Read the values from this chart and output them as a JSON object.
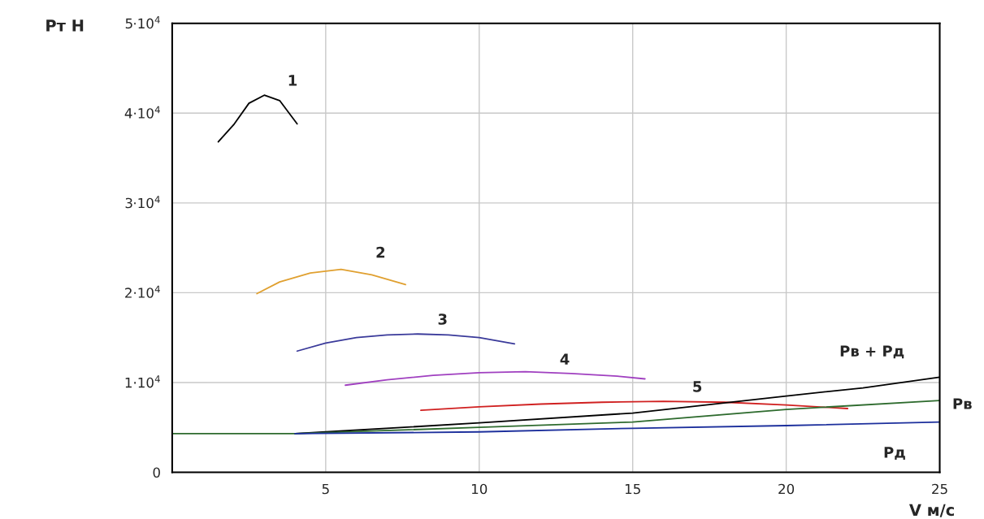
{
  "chart_data": {
    "type": "line",
    "xlabel": "V м/с",
    "ylabel": "Рт Н",
    "xlim": [
      0,
      25
    ],
    "xticks": [
      5,
      10,
      15,
      20,
      25
    ],
    "ylim": [
      0,
      50000
    ],
    "yticks": [
      0,
      {
        "value": 10000,
        "label": "1·10$^{4}$"
      },
      {
        "value": 20000,
        "label": "2·10$^{4}$"
      },
      {
        "value": 30000,
        "label": "3·10$^{4}$"
      },
      {
        "value": 40000,
        "label": "4·10$^{4}$"
      },
      {
        "value": 50000,
        "label": "5·10$^{4}$"
      }
    ],
    "grid": true,
    "legend": false,
    "series": [
      {
        "name": "1",
        "color": "#000000",
        "x": [
          1.5,
          2.0,
          2.5,
          3.0,
          3.5,
          4.07
        ],
        "values": [
          36800,
          38700,
          41100,
          42000,
          41400,
          38800
        ]
      },
      {
        "name": "2",
        "color": "#e0a030",
        "x": [
          2.76,
          3.5,
          4.5,
          5.5,
          6.5,
          7.6
        ],
        "values": [
          19900,
          21200,
          22200,
          22600,
          22000,
          20900
        ]
      },
      {
        "name": "3",
        "color": "#3a3a9a",
        "x": [
          4.07,
          5.0,
          6.0,
          7.0,
          8.0,
          9.0,
          10.0,
          11.15
        ],
        "values": [
          13500,
          14400,
          15000,
          15300,
          15400,
          15300,
          15000,
          14300
        ]
      },
      {
        "name": "4",
        "color": "#a040c0",
        "x": [
          5.64,
          7.0,
          8.5,
          10.0,
          11.5,
          13.0,
          14.5,
          15.4
        ],
        "values": [
          9700,
          10300,
          10800,
          11100,
          11200,
          11000,
          10700,
          10400
        ]
      },
      {
        "name": "5",
        "color": "#d02020",
        "x": [
          8.1,
          10,
          12,
          14,
          16,
          18,
          20,
          22
        ],
        "values": [
          6900,
          7300,
          7600,
          7800,
          7900,
          7800,
          7500,
          7100
        ]
      },
      {
        "name": "Рв + Рд",
        "color": "#000000",
        "x": [
          4,
          5,
          10,
          15,
          20,
          22.5,
          25
        ],
        "values": [
          4300,
          4500,
          5500,
          6600,
          8500,
          9400,
          10600
        ]
      },
      {
        "name": "Рв",
        "color": "#2e6b2e",
        "x": [
          0,
          4,
          10,
          15,
          20,
          25
        ],
        "values": [
          4300,
          4300,
          5000,
          5600,
          7000,
          8000
        ]
      },
      {
        "name": "Рд",
        "color": "#1c2f9c",
        "x": [
          4,
          10,
          15,
          20,
          25
        ],
        "values": [
          4300,
          4500,
          4900,
          5200,
          5600
        ]
      }
    ]
  }
}
